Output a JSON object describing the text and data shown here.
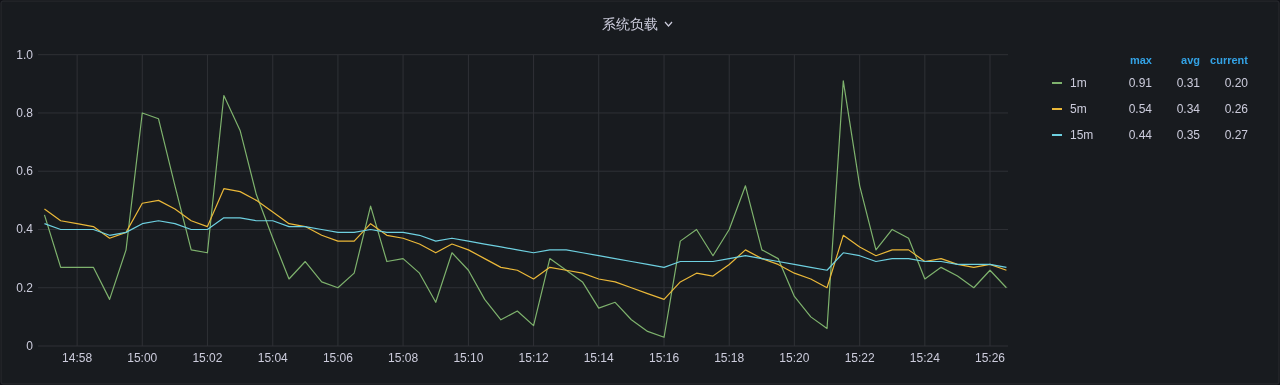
{
  "chart_data": {
    "type": "line",
    "title": "系统负载",
    "legend": "right",
    "grid": true,
    "marker": "none",
    "line_style": "solid",
    "xlim": [
      14.9467,
      15.4425
    ],
    "ylim": [
      0,
      1
    ],
    "yticks": [
      0,
      0.2,
      0.4,
      0.6,
      0.8,
      {
        "value": 1,
        "label": "1.0"
      }
    ],
    "xticks": [
      {
        "value": 14.9667,
        "label": "14:58"
      },
      {
        "value": 15,
        "label": "15:00"
      },
      {
        "value": 15.0333,
        "label": "15:02"
      },
      {
        "value": 15.0667,
        "label": "15:04"
      },
      {
        "value": 15.1,
        "label": "15:06"
      },
      {
        "value": 15.1333,
        "label": "15:08"
      },
      {
        "value": 15.1667,
        "label": "15:10"
      },
      {
        "value": 15.2,
        "label": "15:12"
      },
      {
        "value": 15.2333,
        "label": "15:14"
      },
      {
        "value": 15.2667,
        "label": "15:16"
      },
      {
        "value": 15.3,
        "label": "15:18"
      },
      {
        "value": 15.3333,
        "label": "15:20"
      },
      {
        "value": 15.3667,
        "label": "15:22"
      },
      {
        "value": 15.4,
        "label": "15:24"
      },
      {
        "value": 15.4333,
        "label": "15:26"
      }
    ],
    "x": [
      14.95,
      14.9583,
      14.9667,
      14.975,
      14.9833,
      14.9917,
      15,
      15.0083,
      15.0167,
      15.025,
      15.0333,
      15.0417,
      15.05,
      15.0583,
      15.0667,
      15.075,
      15.0833,
      15.0917,
      15.1,
      15.1083,
      15.1167,
      15.125,
      15.1333,
      15.1417,
      15.15,
      15.1583,
      15.1667,
      15.175,
      15.1833,
      15.1917,
      15.2,
      15.2083,
      15.2167,
      15.225,
      15.2333,
      15.2417,
      15.25,
      15.2583,
      15.2667,
      15.275,
      15.2833,
      15.2917,
      15.3,
      15.3083,
      15.3167,
      15.325,
      15.3333,
      15.3417,
      15.35,
      15.3583,
      15.3667,
      15.375,
      15.3833,
      15.3917,
      15.4,
      15.4083,
      15.4167,
      15.425,
      15.4333,
      15.4417
    ],
    "series": [
      {
        "name": "1m",
        "color": "#7eb26d",
        "values": [
          0.45,
          0.27,
          0.27,
          0.27,
          0.16,
          0.33,
          0.8,
          0.78,
          0.55,
          0.33,
          0.32,
          0.86,
          0.74,
          0.52,
          0.37,
          0.23,
          0.29,
          0.22,
          0.2,
          0.25,
          0.48,
          0.29,
          0.3,
          0.25,
          0.15,
          0.32,
          0.26,
          0.16,
          0.09,
          0.12,
          0.07,
          0.3,
          0.26,
          0.22,
          0.13,
          0.15,
          0.09,
          0.05,
          0.03,
          0.36,
          0.4,
          0.31,
          0.4,
          0.55,
          0.33,
          0.3,
          0.17,
          0.1,
          0.06,
          0.91,
          0.55,
          0.33,
          0.4,
          0.37,
          0.23,
          0.27,
          0.24,
          0.2,
          0.26,
          0.2
        ]
      },
      {
        "name": "5m",
        "color": "#eab839",
        "values": [
          0.47,
          0.43,
          0.42,
          0.41,
          0.37,
          0.39,
          0.49,
          0.5,
          0.47,
          0.43,
          0.41,
          0.54,
          0.53,
          0.5,
          0.46,
          0.42,
          0.41,
          0.38,
          0.36,
          0.36,
          0.42,
          0.38,
          0.37,
          0.35,
          0.32,
          0.35,
          0.33,
          0.3,
          0.27,
          0.26,
          0.23,
          0.27,
          0.26,
          0.25,
          0.23,
          0.22,
          0.2,
          0.18,
          0.16,
          0.22,
          0.25,
          0.24,
          0.28,
          0.33,
          0.3,
          0.28,
          0.25,
          0.23,
          0.2,
          0.38,
          0.34,
          0.31,
          0.33,
          0.33,
          0.29,
          0.3,
          0.28,
          0.27,
          0.28,
          0.26
        ]
      },
      {
        "name": "15m",
        "color": "#6ed0e0",
        "values": [
          0.42,
          0.4,
          0.4,
          0.4,
          0.38,
          0.39,
          0.42,
          0.43,
          0.42,
          0.4,
          0.4,
          0.44,
          0.44,
          0.43,
          0.43,
          0.41,
          0.41,
          0.4,
          0.39,
          0.39,
          0.4,
          0.39,
          0.39,
          0.38,
          0.36,
          0.37,
          0.36,
          0.35,
          0.34,
          0.33,
          0.32,
          0.33,
          0.33,
          0.32,
          0.31,
          0.3,
          0.29,
          0.28,
          0.27,
          0.29,
          0.29,
          0.29,
          0.3,
          0.31,
          0.3,
          0.29,
          0.28,
          0.27,
          0.26,
          0.32,
          0.31,
          0.29,
          0.3,
          0.3,
          0.29,
          0.29,
          0.28,
          0.28,
          0.28,
          0.27
        ]
      }
    ],
    "annotations": [
      "max",
      "avg",
      "current",
      "0.91",
      "0.31",
      "0.20",
      "0.54",
      "0.34",
      "0.26",
      "0.44",
      "0.35",
      "0.27"
    ]
  }
}
